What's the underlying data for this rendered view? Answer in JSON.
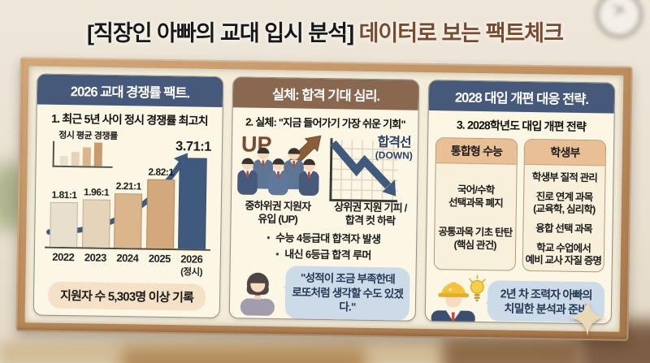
{
  "title": {
    "prefix": "[직장인 아빠의 교대 입시 분석]",
    "suffix": " 데이터로 보는 팩트체크"
  },
  "panel_left": {
    "header": "2026 교대 경쟁률 팩트.",
    "subtitle": "1. 최근 5년 사이 정시 경쟁률 최고치",
    "footer_badge": "지원자 수 5,303명 이상 기록"
  },
  "chart_data": {
    "type": "bar",
    "title": "정시 평균 경쟁률",
    "categories": [
      "2022",
      "2023",
      "2024",
      "2025",
      "2026"
    ],
    "x_note": "(정시)",
    "values": [
      1.81,
      1.96,
      2.21,
      2.82,
      3.71
    ],
    "value_labels": [
      "1.81:1",
      "1.96:1",
      "2.21:1",
      "2.82:1",
      "3.71:1"
    ],
    "bar_colors": [
      "#e9dfcf",
      "#e5d4b9",
      "#dbb58c",
      "#d2a87c",
      "#3f5a7d"
    ],
    "ylim": [
      0,
      3.71
    ],
    "grid": false,
    "annotation": "우상향 추세 화살표"
  },
  "panel_middle": {
    "header": "실체: 합격 기대 심리.",
    "subtitle": "2. 실체: \"지금 들어가기 가장 쉬운 기회\"",
    "up_label": "UP",
    "cutline_label": "합격선",
    "cutline_sublabel": "(DOWN)",
    "caption_applicants": "중하위권 지원자\n유입 (UP)",
    "caption_cutline": "상위권 지원 기피 /\n합격 컷 하락",
    "bullets": [
      "수능 4등급대 합격자 발생",
      "내신 6등급 합격 루머"
    ],
    "speech_bubble": "\"성적이 조금 부족한데\n로또처럼 생각할 수도 있겠다.\""
  },
  "panel_right": {
    "header": "2028 대입 개편 대응 전략.",
    "subtitle": "3. 2028학년도 대입 개편 전략",
    "card_suneung": {
      "header": "통합형 수능",
      "items": [
        "국어/수학\n선택과목 폐지",
        "공통과목 기초 탄탄\n(핵심 관건)"
      ]
    },
    "card_saenggibu": {
      "header": "학생부",
      "items": [
        "학생부 질적 관리",
        "진로 연계 과목\n(교육학, 심리학)",
        "융합 선택 과목",
        "학교 수업에서\n예비 교사 자질 증명"
      ]
    },
    "speech_bubble": "2년 차 조력자 아빠의\n치밀한 분석과 준비"
  },
  "icons": {
    "mini-bar-chart-icon": "ascending-bars",
    "trend-arrow-icon": "curved-up-right-arrow",
    "up-arrow-icon": "up-right-arrow",
    "cutline-arrow-icon": "zigzag-down-right-arrow",
    "students-group-icon": "five-students-in-uniform",
    "woman-icon": "woman-speaker",
    "worker-dad-icon": "man-with-hard-hat",
    "lightbulb-icon": "idea-bulb",
    "sparkle-icon": "four-point-star",
    "clock-icon": "wall-clock"
  },
  "colors": {
    "navy_header": "#46597b",
    "brown_header": "#8a6850",
    "highlight_bar": "#3f5a7d",
    "bubble_blue": "#cddbe9",
    "badge_cream": "#f5e2c6",
    "card_header_tan": "#e9bf95",
    "title_brown": "#7a4a2c",
    "wood_frame": "#bd8d5c"
  }
}
